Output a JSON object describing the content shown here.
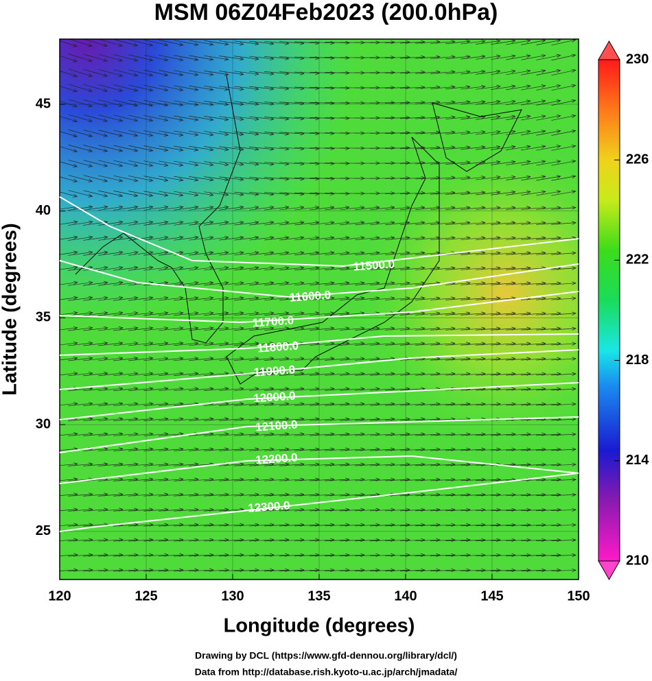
{
  "map": {
    "title": "MSM 06Z04Feb2023 (200.0hPa)",
    "x_axis": {
      "label": "Longitude (degrees)",
      "lim": [
        120,
        150
      ],
      "ticks": [
        120,
        125,
        130,
        135,
        140,
        145,
        150
      ]
    },
    "y_axis": {
      "label": "Latitude  (degrees)",
      "lim": [
        22.75,
        48.05
      ],
      "ticks": [
        25,
        30,
        35,
        40,
        45
      ]
    },
    "colorbar": {
      "lim": [
        210,
        230
      ],
      "ticks": [
        210,
        214,
        218,
        222,
        226,
        230
      ]
    },
    "contours": [
      {
        "value": 11500,
        "label": "11500.0"
      },
      {
        "value": 11600,
        "label": "11600.0"
      },
      {
        "value": 11700,
        "label": "11700.0"
      },
      {
        "value": 11800,
        "label": "11800.0"
      },
      {
        "value": 11900,
        "label": "11900.0"
      },
      {
        "value": 12000,
        "label": "12000.0"
      },
      {
        "value": 12100,
        "label": "12100.0"
      },
      {
        "value": 12200,
        "label": "12200.0"
      },
      {
        "value": 12300,
        "label": "12300.0"
      }
    ],
    "credits": [
      "Drawing by DCL (https://www.gfd-dennou.org/library/dcl/)",
      "Data from http://database.rish.kyoto-u.ac.jp/arch/jmadata/"
    ]
  }
}
